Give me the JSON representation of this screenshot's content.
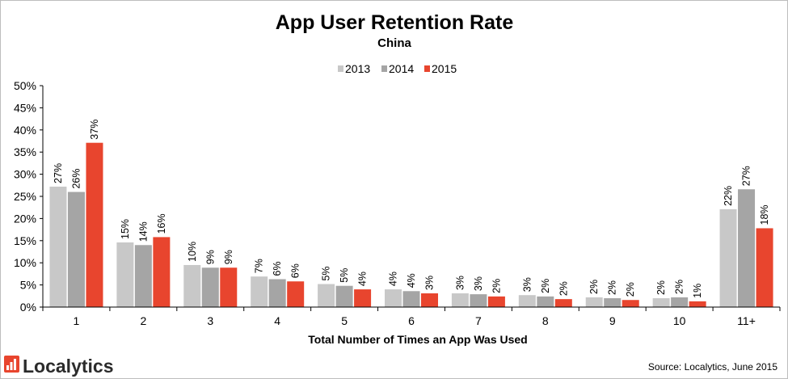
{
  "chart_data": {
    "type": "bar",
    "title": "App User Retention Rate",
    "subtitle": "China",
    "xlabel": "Total Number of Times an App Was Used",
    "ylabel": "",
    "ylim": [
      0,
      50
    ],
    "yticks": [
      "0%",
      "5%",
      "10%",
      "15%",
      "20%",
      "25%",
      "30%",
      "35%",
      "40%",
      "45%",
      "50%"
    ],
    "categories": [
      "1",
      "2",
      "3",
      "4",
      "5",
      "6",
      "7",
      "8",
      "9",
      "10",
      "11+"
    ],
    "legend_position": "top-center",
    "grid": false,
    "series": [
      {
        "name": "2013",
        "color": "#c8c8c8",
        "values": [
          27.2,
          14.6,
          9.5,
          6.9,
          5.2,
          4.0,
          3.1,
          2.7,
          2.2,
          2.0,
          22.1
        ],
        "labels": [
          "27%",
          "15%",
          "10%",
          "7%",
          "5%",
          "4%",
          "3%",
          "3%",
          "2%",
          "2%",
          "22%"
        ]
      },
      {
        "name": "2014",
        "color": "#a5a5a5",
        "values": [
          26.0,
          14.0,
          8.9,
          6.3,
          4.8,
          3.6,
          2.9,
          2.4,
          2.0,
          2.2,
          26.6
        ],
        "labels": [
          "26%",
          "14%",
          "9%",
          "6%",
          "5%",
          "4%",
          "3%",
          "2%",
          "2%",
          "2%",
          "27%"
        ]
      },
      {
        "name": "2015",
        "color": "#e8452e",
        "values": [
          37.1,
          15.8,
          8.9,
          5.8,
          4.0,
          3.1,
          2.4,
          1.8,
          1.6,
          1.3,
          17.8
        ],
        "labels": [
          "37%",
          "16%",
          "9%",
          "6%",
          "4%",
          "3%",
          "2%",
          "2%",
          "2%",
          "1%",
          "18%"
        ]
      }
    ]
  },
  "footer": {
    "logo_text": "Localytics",
    "source": "Source: Localytics, June 2015",
    "logo_color": "#e8452e"
  }
}
